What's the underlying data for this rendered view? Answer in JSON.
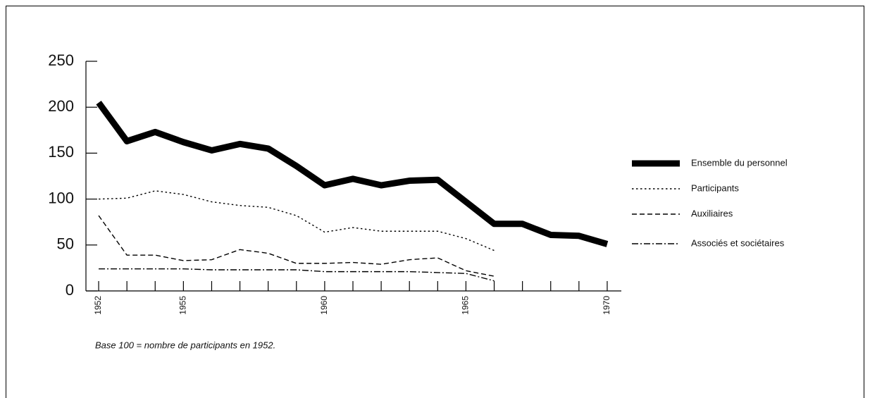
{
  "chart_data": {
    "type": "line",
    "x": [
      1952,
      1953,
      1954,
      1955,
      1956,
      1957,
      1958,
      1959,
      1960,
      1961,
      1962,
      1963,
      1964,
      1965,
      1966,
      1967,
      1968,
      1969,
      1970
    ],
    "series": [
      {
        "name": "Ensemble du personnel",
        "color": "#000000",
        "style": "thick",
        "values": [
          205,
          163,
          173,
          162,
          153,
          160,
          155,
          136,
          115,
          122,
          115,
          120,
          121,
          97,
          73,
          73,
          61,
          60,
          51
        ]
      },
      {
        "name": "Participants",
        "color": "#000000",
        "style": "dotted",
        "values": [
          100,
          101,
          109,
          105,
          97,
          93,
          91,
          82,
          64,
          69,
          65,
          65,
          65,
          57,
          44,
          null,
          null,
          null,
          null
        ]
      },
      {
        "name": "Auxiliaires",
        "color": "#000000",
        "style": "dashed",
        "values": [
          82,
          39,
          39,
          33,
          34,
          45,
          41,
          30,
          30,
          31,
          29,
          34,
          36,
          22,
          16,
          null,
          null,
          null,
          null
        ]
      },
      {
        "name": "Associés et sociétaires",
        "color": "#000000",
        "style": "dashdot",
        "values": [
          24,
          24,
          24,
          24,
          23,
          23,
          23,
          23,
          21,
          21,
          21,
          21,
          20,
          19,
          11,
          null,
          null,
          null,
          null
        ]
      }
    ],
    "xlim": [
      1951.55,
      1970.5
    ],
    "xticks": [
      1952,
      1955,
      1960,
      1965,
      1970
    ],
    "x_minor_ticks": [
      1953,
      1954,
      1956,
      1957,
      1958,
      1959,
      1961,
      1962,
      1963,
      1964,
      1966,
      1967,
      1968,
      1969
    ],
    "ylim": [
      0,
      250
    ],
    "yticks": [
      0,
      50,
      100,
      150,
      200,
      250
    ],
    "legend": "right",
    "note": "Base 100 = nombre de participants en 1952."
  }
}
